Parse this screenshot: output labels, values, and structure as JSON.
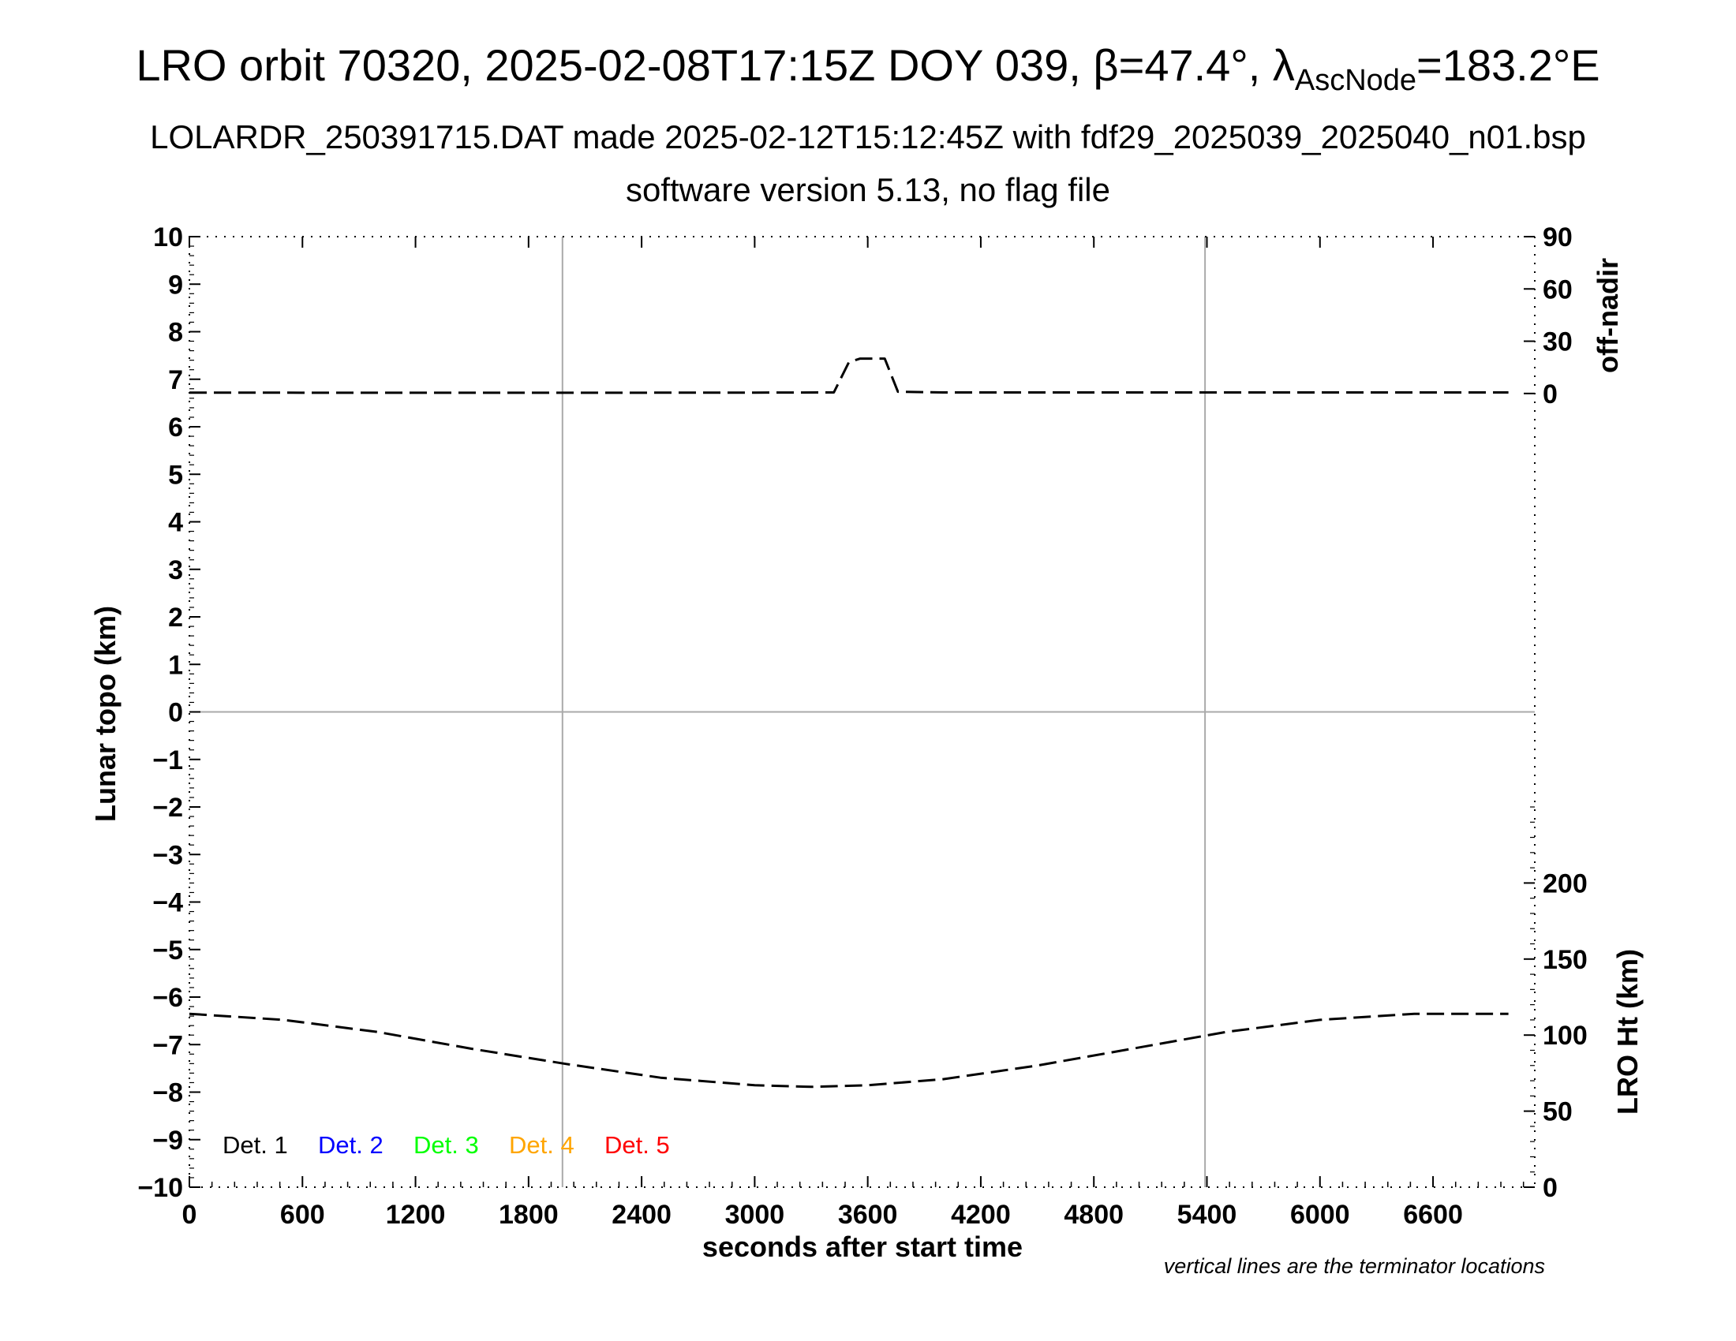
{
  "title": {
    "prefix": "LRO orbit 70320, 2025-02-08T17:15Z DOY 039, ",
    "beta_symbol": "β",
    "beta_value": "=47.4°, ",
    "lambda_symbol": "λ",
    "lambda_subscript": "AscNode",
    "lambda_value": "=183.2°E"
  },
  "subtitle1": "LOLARDR_250391715.DAT made 2025-02-12T15:12:45Z with fdf29_2025039_2025040_n01.bsp",
  "subtitle2": "software version 5.13, no flag file",
  "note": "vertical lines are the terminator locations",
  "chart_data": {
    "type": "line",
    "xlabel": "seconds after start time",
    "ylabel_left": "Lunar topo (km)",
    "ylabel_right_top": "off-nadir",
    "ylabel_right_bottom": "LRO Ht (km)",
    "xlim": [
      0,
      7140
    ],
    "ylim_left": [
      -10,
      10
    ],
    "x_ticks": [
      0,
      600,
      1200,
      1800,
      2400,
      3000,
      3600,
      4200,
      4800,
      5400,
      6000,
      6600
    ],
    "x_tick_labels": [
      "0",
      "600",
      "1200",
      "1800",
      "2400",
      "3000",
      "3600",
      "4200",
      "4800",
      "5400",
      "6000",
      "6600"
    ],
    "y_ticks_left": [
      10,
      9,
      8,
      7,
      6,
      5,
      4,
      3,
      2,
      1,
      0,
      -1,
      -2,
      -3,
      -4,
      -5,
      -6,
      -7,
      -8,
      -9,
      -10
    ],
    "y_tick_labels_left": [
      "10",
      "9",
      "8",
      "7",
      "6",
      "5",
      "4",
      "3",
      "2",
      "1",
      "0",
      "−1",
      "−2",
      "−3",
      "−4",
      "−5",
      "−6",
      "−7",
      "−8",
      "−9",
      "−10"
    ],
    "off_nadir_axis": {
      "range": [
        0,
        90
      ],
      "ticks": [
        0,
        30,
        60,
        90
      ],
      "tick_labels": [
        "0",
        "30",
        "60",
        "90"
      ]
    },
    "lro_ht_axis": {
      "range": [
        0,
        250
      ],
      "ticks": [
        0,
        50,
        100,
        150,
        200
      ],
      "tick_labels": [
        "0",
        "50",
        "100",
        "150",
        "200"
      ]
    },
    "terminator_lines_x": [
      1980,
      5390
    ],
    "grid_zero_line": true,
    "series": [
      {
        "style": "dashed",
        "color": "#000000",
        "axis": "off-nadir",
        "x": [
          0,
          1000,
          2000,
          3000,
          3420,
          3500,
          3560,
          3690,
          3760,
          4000,
          5000,
          6000,
          7000
        ],
        "y": [
          0.5,
          0.4,
          0.4,
          0.5,
          0.6,
          18,
          20,
          20,
          1,
          0.6,
          0.6,
          0.6,
          0.6
        ]
      },
      {
        "style": "dashed",
        "color": "#000000",
        "axis": "LRO Ht (km)",
        "x": [
          0,
          500,
          1000,
          1500,
          2000,
          2500,
          3000,
          3300,
          3600,
          4000,
          4500,
          5000,
          5500,
          6000,
          6500,
          7000
        ],
        "y": [
          114,
          110,
          102,
          91,
          81,
          72,
          67,
          66,
          67,
          71,
          80,
          91,
          102,
          110,
          114,
          114
        ]
      }
    ],
    "legend": [
      {
        "label": "Det. 1",
        "color": "#000000"
      },
      {
        "label": "Det. 2",
        "color": "#0000ff"
      },
      {
        "label": "Det. 3",
        "color": "#00ff00"
      },
      {
        "label": "Det. 4",
        "color": "#ffa500"
      },
      {
        "label": "Det. 5",
        "color": "#ff0000"
      }
    ],
    "legend_position": "bottom-left"
  }
}
